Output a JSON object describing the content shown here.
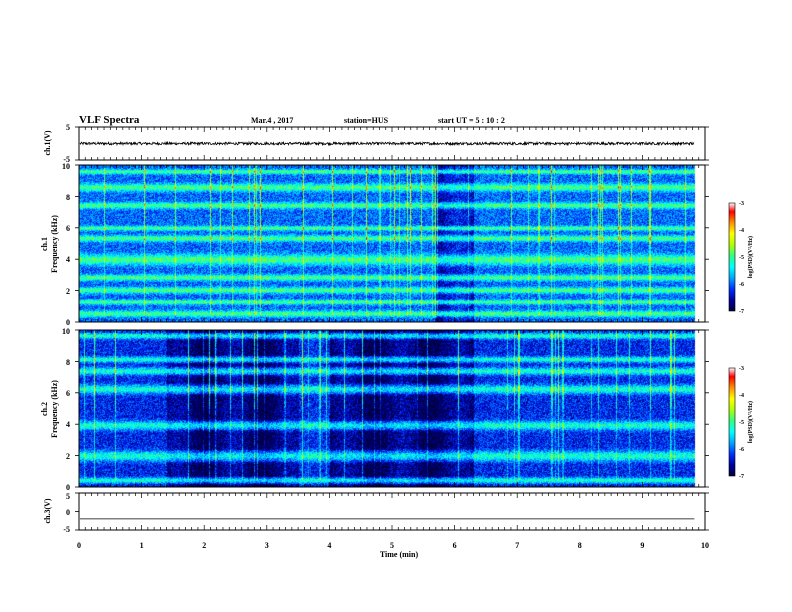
{
  "header": {
    "title": "VLF Spectra",
    "date": "Mar.4 , 2017",
    "station": "station=HUS",
    "start": "start UT =  5 : 10 : 2"
  },
  "colors": {
    "background": "#ffffff",
    "axes": "#000000",
    "colormap": [
      "#00003c",
      "#0000a0",
      "#0030ff",
      "#00a8ff",
      "#00ffff",
      "#30ff80",
      "#b0ff00",
      "#ffff00",
      "#ff9000",
      "#ff0000",
      "#ffffff"
    ]
  },
  "chart_data": [
    {
      "type": "line",
      "name": "ch1-waveform",
      "ylabel": "ch.1(V)",
      "ylim": [
        -5,
        5
      ],
      "yticks": [
        "5",
        "-5"
      ],
      "xlim": [
        0,
        10
      ],
      "series": [
        {
          "values_mean": 0,
          "noise_amplitude_v": 0.4,
          "x_end": 9.83
        }
      ]
    },
    {
      "type": "heatmap",
      "name": "ch1-spectrogram",
      "ylabel": "ch.1\nFrequency (kHz)",
      "ylabel_lines": [
        "ch.1",
        "Frequency (kHz)"
      ],
      "ylim": [
        0,
        10
      ],
      "yticks": [
        "0",
        "2",
        "4",
        "6",
        "8",
        "10"
      ],
      "xlim": [
        0,
        10
      ],
      "x_end": 9.83,
      "colorbar": {
        "label": "log(PSD)(V²/Hz)",
        "range": [
          -7,
          -3
        ],
        "ticks": [
          "-3",
          "-4",
          "-5",
          "-6",
          "-7"
        ]
      },
      "bright_bands_khz": [
        [
          0.4,
          0.7
        ],
        [
          1.2,
          1.4
        ],
        [
          1.9,
          2.2
        ],
        [
          2.7,
          3.0
        ],
        [
          3.7,
          4.3
        ],
        [
          5.2,
          5.5
        ],
        [
          5.9,
          6.1
        ],
        [
          7.3,
          7.6
        ],
        [
          8.4,
          8.8
        ],
        [
          9.5,
          9.7
        ]
      ],
      "quiet_intervals_min": [
        [
          5.7,
          6.3
        ]
      ],
      "base_level": -5.9
    },
    {
      "type": "heatmap",
      "name": "ch2-spectrogram",
      "ylabel": "ch.2\nFrequency (kHz)",
      "ylabel_lines": [
        "ch.2",
        "Frequency (kHz)"
      ],
      "ylim": [
        0,
        10
      ],
      "yticks": [
        "0",
        "2",
        "4",
        "6",
        "8",
        "10"
      ],
      "xlim": [
        0,
        10
      ],
      "x_end": 9.83,
      "colorbar": {
        "label": "log(PSD)(V²/Hz)",
        "range": [
          -7,
          -3
        ],
        "ticks": [
          "-3",
          "-4",
          "-5",
          "-6",
          "-7"
        ]
      },
      "bright_bands_khz": [
        [
          0.3,
          0.6
        ],
        [
          1.7,
          2.3
        ],
        [
          3.7,
          4.2
        ],
        [
          6.0,
          6.5
        ],
        [
          7.2,
          7.6
        ],
        [
          8.0,
          8.3
        ],
        [
          9.5,
          9.8
        ]
      ],
      "quiet_intervals_min": [
        [
          1.4,
          3.5
        ],
        [
          4.0,
          6.3
        ]
      ],
      "base_level": -6.2
    },
    {
      "type": "line",
      "name": "ch3-waveform",
      "ylabel": "ch.3(V)",
      "ylim": [
        -5,
        5
      ],
      "yticks": [
        "5",
        "0",
        "-5"
      ],
      "xlim": [
        0,
        10
      ],
      "series": [
        {
          "values_mean": -2,
          "noise_amplitude_v": 0,
          "x_end": 9.83
        }
      ]
    }
  ],
  "xaxis": {
    "label": "Time (min)",
    "ticks": [
      "0",
      "1",
      "2",
      "3",
      "4",
      "5",
      "6",
      "7",
      "8",
      "9",
      "10"
    ]
  }
}
